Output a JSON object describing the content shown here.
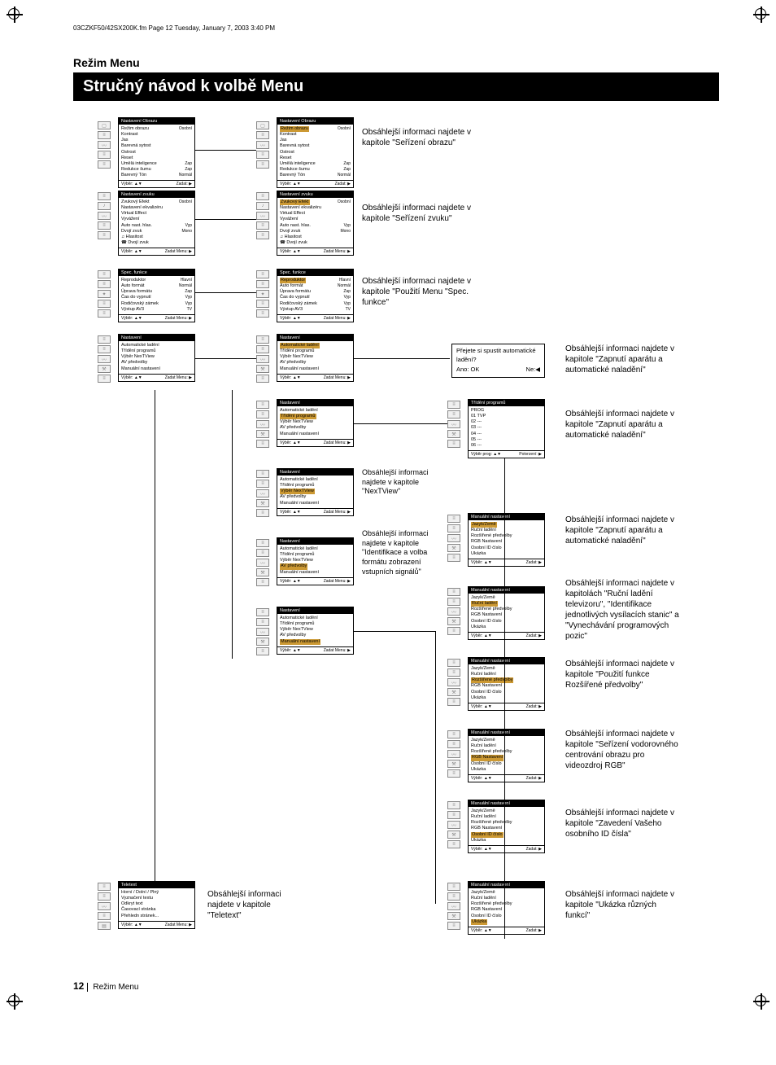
{
  "header": "03CZKF50/42SX200K.fm  Page 12  Tuesday, January 7, 2003  3:40 PM",
  "section": "Režim Menu",
  "title": "Stručný návod k volbě Menu",
  "page_num": "12",
  "page_label": "Režim Menu",
  "captions": {
    "c1": "Obsáhlejší informaci najdete v kapitole \"Seřízení obrazu\"",
    "c2": "Obsáhlejší informaci najdete v kapitole \"Seřízení zvuku\"",
    "c3": "Obsáhlejší informaci najdete v kapitole \"Použití Menu \"Spec. funkce\"",
    "c4": "Obsáhlejší informaci najdete v kapitole \"Zapnutí aparátu a automatické naladění\"",
    "c5": "Obsáhlejší informaci najdete v kapitole \"Zapnutí aparátu a automatické naladění\"",
    "c6": "Obsáhlejší informaci najdete v kapitole \"NexTView\"",
    "c7": "Obsáhlejší informaci najdete v kapitole \"Identifikace a volba formátu zobrazení vstupních signálů\"",
    "c8": "Obsáhlejší informaci najdete v kapitole \"Teletext\"",
    "c9": "Obsáhlejší informaci najdete v kapitole \"Zapnutí aparátu a automatické naladění\"",
    "c10": "Obsáhlejší informaci najdete v kapitolách \"Ruční ladění televizoru\", \"Identifikace jednotlivých vysílacích stanic\" a \"Vynechávání programových pozic\"",
    "c11": "Obsáhlejší informaci najdete v kapitole \"Použití funkce Rozšířené předvolby\"",
    "c12": "Obsáhlejší informaci najdete v kapitole \"Seřízení vodorovného centrování obrazu pro videozdroj RGB\"",
    "c13": "Obsáhlejší informaci najdete v kapitole \"Zavedení Vašeho osobního ID čísla\"",
    "c14": "Obsáhlejší informaci najdete v kapitole \"Ukázka různých funkcí\""
  },
  "popup": {
    "q": "Přejete si spustit automatické ladění?",
    "yes": "Ano: OK",
    "no": "Ne:◀"
  },
  "menus": {
    "obraz": {
      "t": "Nastavení Obrazu",
      "rows": [
        "Režim obrazu|Osobní",
        "Kontrast|",
        "Jas|",
        "Barevná sytost|",
        "Ostrost|",
        "Reset|",
        "Umělá inteligence|Zap",
        "Redukce šumu|Zap",
        "Barevný Tón|Normál"
      ],
      "f": [
        "Výběr: ▲▼",
        "Zadat: ▶"
      ]
    },
    "zvuk": {
      "t": "Nastavení zvuku",
      "rows": [
        "Zvukový Efekt|Osobní",
        "Nastavení ekvalizéru|",
        "Virtual Effect|",
        "Vyvážení|",
        "Auto nast. hlas.|Vyp",
        "Dvojí zvuk|Mono",
        "♫ Hlasitost|",
        "☎ Dvojí zvuk|"
      ],
      "f": [
        "Výběr: ▲▼",
        "Zadat Menu: ▶"
      ]
    },
    "spec": {
      "t": "Spec. funkce",
      "rows": [
        "Reproduktor|Hlavní",
        "Auto formát|Normál",
        "Úprava formátu|Zap",
        "Čas do vypnutí|Vyp",
        "Rodičovský zámek|Vyp",
        "Výstup AV3|TV"
      ],
      "f": [
        "Výběr: ▲▼",
        "Zadat Menu: ▶"
      ]
    },
    "nast": {
      "t": "Nastavení",
      "rows": [
        "Automatické ladění",
        "Třídění programů",
        "Výběr NexTView",
        "AV předvolby",
        "Manuální nastavení"
      ],
      "f": [
        "Výběr: ▲▼",
        "Zadat Menu: ▶"
      ]
    },
    "trideni": {
      "t": "Třídění programů",
      "rows": [
        "PROG",
        "01  TVP",
        "02  ---",
        "03  ---",
        "04  ---",
        "05  ---",
        "06  ---"
      ],
      "f": [
        "Výběr prog: ▲▼",
        "Potvrzení: ▶"
      ]
    },
    "man": {
      "t": "Manuální nastavení",
      "rows": [
        "Jazyk/Země",
        "Ruční ladění",
        "Rozšířené předvolby",
        "RGB Nastavení",
        "Osobní ID číslo",
        "Ukázka"
      ],
      "f": [
        "Výběr: ▲▼",
        "Zadat: ▶"
      ]
    },
    "tt": {
      "t": "Teletext",
      "rows": [
        "Horní / Dolní / Plný",
        "Vyznačení textu",
        "Odkryt text",
        "Časovací stránka",
        "Přehledn stránek..."
      ],
      "f": [
        "Výběr: ▲▼",
        "Zadat Menu: ▶"
      ]
    }
  }
}
